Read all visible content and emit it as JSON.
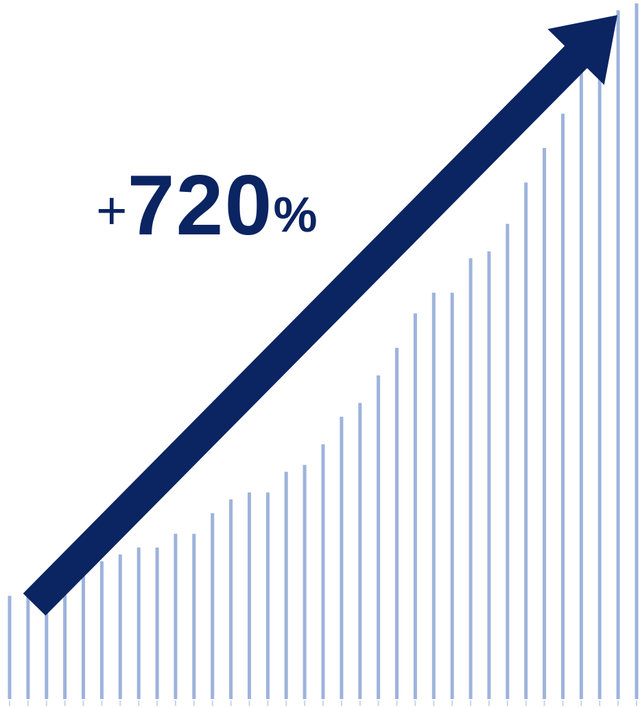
{
  "headline": {
    "sign": "+",
    "value": "720",
    "unit": "%"
  },
  "colors": {
    "bar": "#9db3dc",
    "arrow": "#0b2462",
    "text": "#0b2462",
    "baseline_tick": "#c9d3e6"
  },
  "chart_data": {
    "type": "bar",
    "values": [
      15,
      15,
      16,
      17,
      19,
      20,
      21,
      22,
      22,
      24,
      24,
      27,
      29,
      30,
      30,
      33,
      34,
      37,
      41,
      43,
      47,
      51,
      56,
      59,
      59,
      64,
      65,
      69,
      75,
      80,
      85,
      91,
      96,
      100,
      101
    ]
  }
}
